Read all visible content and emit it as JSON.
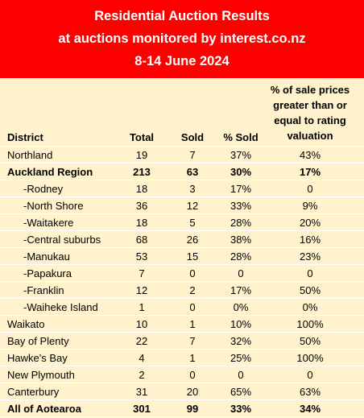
{
  "header": {
    "title_lines": [
      "Residential Auction Results",
      "at auctions monitored by interest.co.nz",
      "8-14 June 2024"
    ]
  },
  "table": {
    "columns": [
      "District",
      "Total",
      "Sold",
      "% Sold",
      [
        "% of sale prices",
        "greater than or",
        "equal to rating",
        "valuation"
      ]
    ],
    "rows": [
      {
        "cells": [
          "Northland",
          "19",
          "7",
          "37%",
          "43%"
        ]
      },
      {
        "cells": [
          "Auckland Region",
          "213",
          "63",
          "30%",
          "17%"
        ],
        "bold": true
      },
      {
        "cells": [
          "-Rodney",
          "18",
          "3",
          "17%",
          "0"
        ]
      },
      {
        "cells": [
          "-North Shore",
          "36",
          "12",
          "33%",
          "9%"
        ]
      },
      {
        "cells": [
          "-Waitakere",
          "18",
          "5",
          "28%",
          "20%"
        ]
      },
      {
        "cells": [
          "-Central suburbs",
          "68",
          "26",
          "38%",
          "16%"
        ]
      },
      {
        "cells": [
          "-Manukau",
          "53",
          "15",
          "28%",
          "23%"
        ]
      },
      {
        "cells": [
          "-Papakura",
          "7",
          "0",
          "0",
          "0"
        ]
      },
      {
        "cells": [
          "-Franklin",
          "12",
          "2",
          "17%",
          "50%"
        ]
      },
      {
        "cells": [
          "-Waiheke Island",
          "1",
          "0",
          "0%",
          "0%"
        ]
      },
      {
        "cells": [
          "Waikato",
          "10",
          "1",
          "10%",
          "100%"
        ]
      },
      {
        "cells": [
          "Bay of Plenty",
          "22",
          "7",
          "32%",
          "50%"
        ]
      },
      {
        "cells": [
          "Hawke's Bay",
          "4",
          "1",
          "25%",
          "100%"
        ]
      },
      {
        "cells": [
          "New Plymouth",
          "2",
          "0",
          "0",
          "0"
        ]
      },
      {
        "cells": [
          "Canterbury",
          "31",
          "20",
          "65%",
          "63%"
        ]
      },
      {
        "cells": [
          "All of Aotearoa",
          "301",
          "99",
          "33%",
          "34%"
        ],
        "bold": true
      }
    ]
  }
}
